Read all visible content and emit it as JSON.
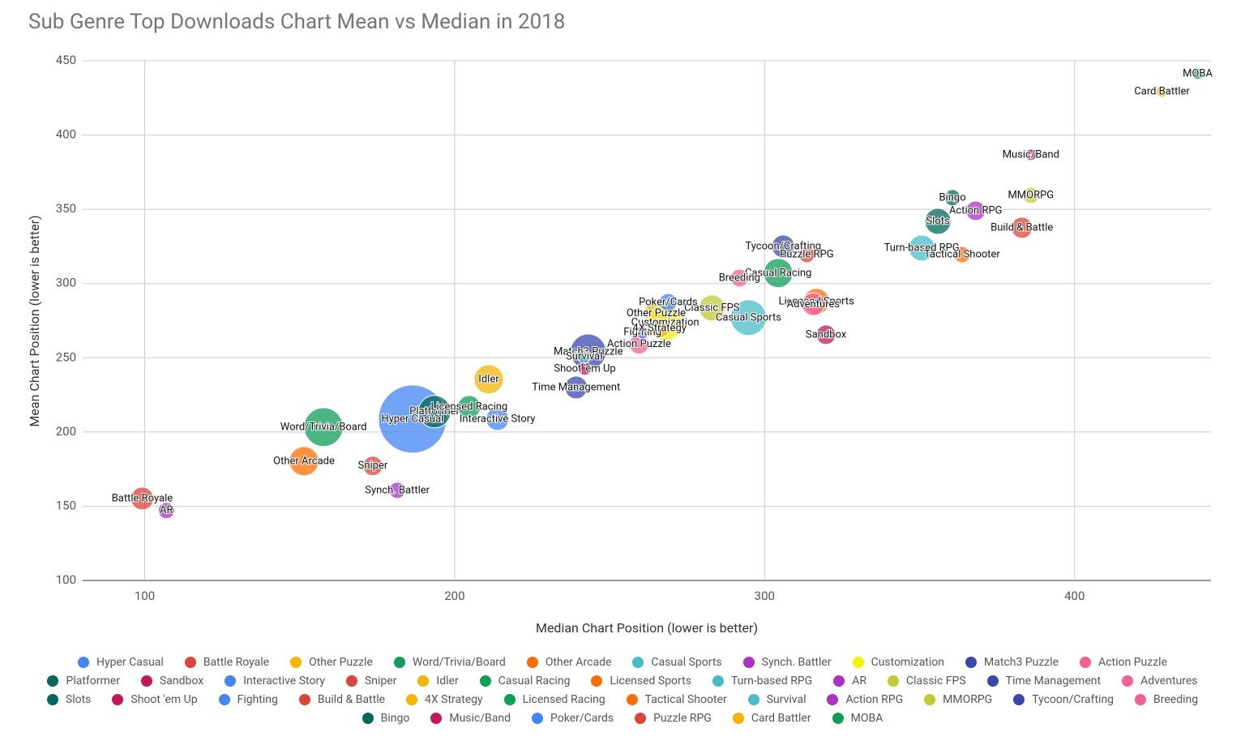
{
  "chart_data": {
    "type": "bubble",
    "title": "Sub Genre Top Downloads Chart Mean vs Median in 2018",
    "x_label": "Median Chart Position (lower is better)",
    "y_label": "Mean Chart Position (lower is better)",
    "xlim": [
      80,
      444
    ],
    "xticks": [
      100,
      200,
      300,
      400
    ],
    "ylim": [
      100,
      450
    ],
    "yticks": [
      100,
      150,
      200,
      250,
      300,
      350,
      400,
      450
    ],
    "grid": true,
    "legend": "bottom",
    "series": [
      {
        "name": "Hyper Casual",
        "color": "#4285f4",
        "x": [
          186.4
        ],
        "values": [
          208.7
        ],
        "sizes": [
          42
        ]
      },
      {
        "name": "Battle Royale",
        "color": "#db4437",
        "x": [
          99.2
        ],
        "values": [
          155.2
        ],
        "sizes": [
          14
        ]
      },
      {
        "name": "Other Puzzle",
        "color": "#f4b400",
        "x": [
          265
        ],
        "values": [
          280
        ],
        "sizes": [
          14
        ]
      },
      {
        "name": "Word/Trivia/Board",
        "color": "#0f9d58",
        "x": [
          157.7
        ],
        "values": [
          203.3
        ],
        "sizes": [
          24
        ]
      },
      {
        "name": "Other Arcade",
        "color": "#ff6d01",
        "x": [
          151.4
        ],
        "values": [
          180.3
        ],
        "sizes": [
          18
        ]
      },
      {
        "name": "Casual Sports",
        "color": "#46bdc6",
        "x": [
          294.8
        ],
        "values": [
          277
        ],
        "sizes": [
          22
        ]
      },
      {
        "name": "Synch. Battler",
        "color": "#ab30c4",
        "x": [
          181.5
        ],
        "values": [
          160.7
        ],
        "sizes": [
          10
        ]
      },
      {
        "name": "Customization",
        "color": "#f5f200",
        "x": [
          267.9
        ],
        "values": [
          273.7
        ],
        "sizes": [
          22
        ]
      },
      {
        "name": "Match3 Puzzle",
        "color": "#3949ab",
        "x": [
          243.1
        ],
        "values": [
          254
        ],
        "sizes": [
          22
        ]
      },
      {
        "name": "Action Puzzle",
        "color": "#f06292",
        "x": [
          259.5
        ],
        "values": [
          259
        ],
        "sizes": [
          12
        ]
      },
      {
        "name": "Platformer",
        "color": "#00695c",
        "x": [
          193.5
        ],
        "values": [
          213.7
        ],
        "sizes": [
          20
        ]
      },
      {
        "name": "Sandbox",
        "color": "#c2185b",
        "x": [
          319.8
        ],
        "values": [
          265.5
        ],
        "sizes": [
          12
        ]
      },
      {
        "name": "Interactive Story",
        "color": "#4285f4",
        "x": [
          213.8
        ],
        "values": [
          208.7
        ],
        "sizes": [
          14
        ]
      },
      {
        "name": "Sniper",
        "color": "#db4437",
        "x": [
          173.6
        ],
        "values": [
          177.1
        ],
        "sizes": [
          12
        ]
      },
      {
        "name": "Idler",
        "color": "#f4b400",
        "x": [
          211
        ],
        "values": [
          235.5
        ],
        "sizes": [
          18
        ]
      },
      {
        "name": "Casual Racing",
        "color": "#0f9d58",
        "x": [
          304.4
        ],
        "values": [
          307
        ],
        "sizes": [
          18
        ]
      },
      {
        "name": "Licensed Sports",
        "color": "#ff6d01",
        "x": [
          316.7
        ],
        "values": [
          287.9
        ],
        "sizes": [
          16
        ]
      },
      {
        "name": "Turn-based RPG",
        "color": "#46bdc6",
        "x": [
          350.7
        ],
        "values": [
          323.9
        ],
        "sizes": [
          16
        ]
      },
      {
        "name": "AR",
        "color": "#ab30c4",
        "x": [
          107
        ],
        "values": [
          147.1
        ],
        "sizes": [
          10
        ]
      },
      {
        "name": "Classic FPS",
        "color": "#c0ca33",
        "x": [
          283
        ],
        "values": [
          283.5
        ],
        "sizes": [
          16
        ]
      },
      {
        "name": "Time Management",
        "color": "#3949ab",
        "x": [
          239.2
        ],
        "values": [
          230
        ],
        "sizes": [
          14
        ]
      },
      {
        "name": "Adventures",
        "color": "#f06292",
        "x": [
          315.7
        ],
        "values": [
          286
        ],
        "sizes": [
          14
        ]
      },
      {
        "name": "Slots",
        "color": "#00695c",
        "x": [
          355.9
        ],
        "values": [
          341.9
        ],
        "sizes": [
          16
        ]
      },
      {
        "name": "Shoot 'em Up",
        "color": "#c2185b",
        "x": [
          242
        ],
        "values": [
          242.6
        ],
        "sizes": [
          8
        ]
      },
      {
        "name": "Fighting",
        "color": "#4285f4",
        "x": [
          260.6
        ],
        "values": [
          267.1
        ],
        "sizes": [
          8
        ]
      },
      {
        "name": "Build & Battle",
        "color": "#db4437",
        "x": [
          383
        ],
        "values": [
          337.6
        ],
        "sizes": [
          13
        ]
      },
      {
        "name": "4X Strategy",
        "color": "#f4b400",
        "x": [
          266.1
        ],
        "values": [
          269.9
        ],
        "sizes": [
          12
        ]
      },
      {
        "name": "Licensed Racing",
        "color": "#0f9d58",
        "x": [
          204.7
        ],
        "values": [
          216.9
        ],
        "sizes": [
          14
        ]
      },
      {
        "name": "Tactical Shooter",
        "color": "#ff6d01",
        "x": [
          363.7
        ],
        "values": [
          319.5
        ],
        "sizes": [
          10
        ]
      },
      {
        "name": "Survival",
        "color": "#46bdc6",
        "x": [
          241.8
        ],
        "values": [
          250.8
        ],
        "sizes": [
          8
        ]
      },
      {
        "name": "Action RPG",
        "color": "#ab30c4",
        "x": [
          368.1
        ],
        "values": [
          349
        ],
        "sizes": [
          12
        ]
      },
      {
        "name": "MMORPG",
        "color": "#c0ca33",
        "x": [
          385.9
        ],
        "values": [
          359.4
        ],
        "sizes": [
          10
        ]
      },
      {
        "name": "Tycoon/Crafting",
        "color": "#3949ab",
        "x": [
          306
        ],
        "values": [
          325
        ],
        "sizes": [
          14
        ]
      },
      {
        "name": "Breeding",
        "color": "#f06292",
        "x": [
          291.9
        ],
        "values": [
          303.7
        ],
        "sizes": [
          11
        ]
      },
      {
        "name": "Bingo",
        "color": "#00695c",
        "x": [
          360.6
        ],
        "values": [
          357.8
        ],
        "sizes": [
          10
        ]
      },
      {
        "name": "Music/Band",
        "color": "#c2185b",
        "x": [
          385.9
        ],
        "values": [
          386.7
        ],
        "sizes": [
          7
        ]
      },
      {
        "name": "Poker/Cards",
        "color": "#4285f4",
        "x": [
          268.9
        ],
        "values": [
          287.3
        ],
        "sizes": [
          11
        ]
      },
      {
        "name": "Puzzle RPG",
        "color": "#db4437",
        "x": [
          313.6
        ],
        "values": [
          319.5
        ],
        "sizes": [
          10
        ]
      },
      {
        "name": "Card Battler",
        "color": "#f4b400",
        "x": [
          428.2
        ],
        "values": [
          429.3
        ],
        "sizes": [
          7
        ]
      },
      {
        "name": "MOBA",
        "color": "#0f9d58",
        "x": [
          439.7
        ],
        "values": [
          441.3
        ],
        "sizes": [
          7
        ]
      }
    ]
  }
}
